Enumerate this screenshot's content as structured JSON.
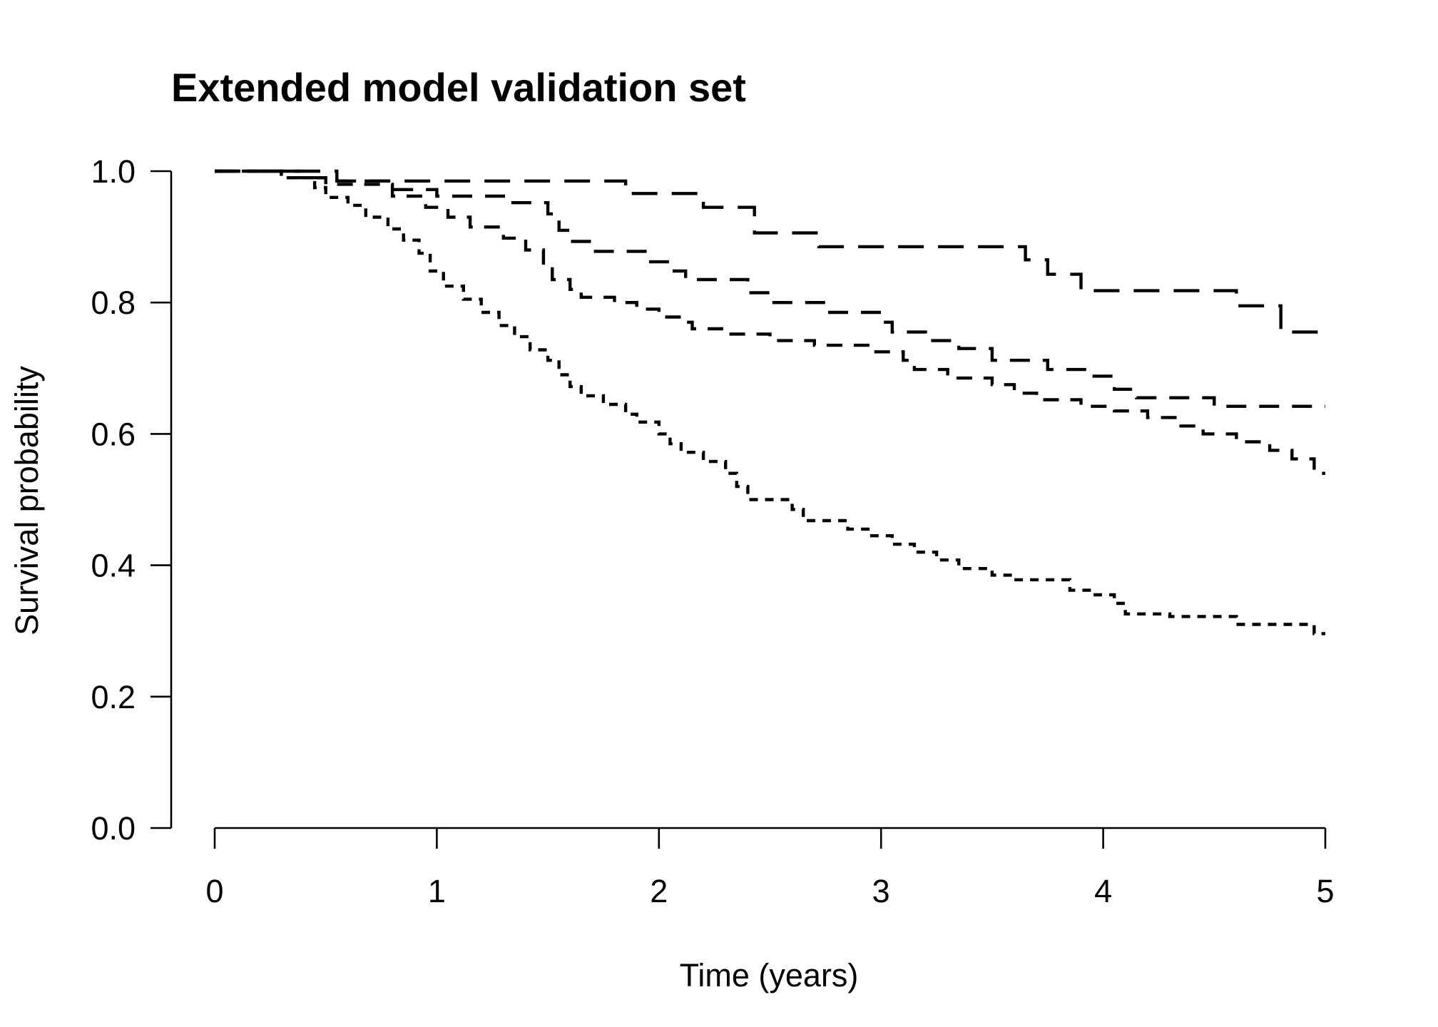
{
  "chart_data": {
    "type": "line",
    "title": "Extended model validation set",
    "xlabel": "Time (years)",
    "ylabel": "Survival probability",
    "xlim": [
      0,
      5
    ],
    "ylim": [
      0,
      1
    ],
    "x_ticks": [
      "0",
      "1",
      "2",
      "3",
      "4",
      "5"
    ],
    "y_ticks": [
      "0.0",
      "0.2",
      "0.4",
      "0.6",
      "0.8",
      "1.0"
    ],
    "grid": false,
    "legend": "none",
    "line_color": "#000000",
    "series": [
      {
        "line_style": "long-dash",
        "points": [
          [
            0,
            1.0
          ],
          [
            0.55,
            1.0
          ],
          [
            0.55,
            0.985
          ],
          [
            1.85,
            0.985
          ],
          [
            1.85,
            0.966
          ],
          [
            2.2,
            0.966
          ],
          [
            2.2,
            0.945
          ],
          [
            2.43,
            0.945
          ],
          [
            2.43,
            0.906
          ],
          [
            2.72,
            0.906
          ],
          [
            2.72,
            0.885
          ],
          [
            3.65,
            0.885
          ],
          [
            3.65,
            0.865
          ],
          [
            3.75,
            0.865
          ],
          [
            3.75,
            0.843
          ],
          [
            3.9,
            0.843
          ],
          [
            3.9,
            0.818
          ],
          [
            4.6,
            0.818
          ],
          [
            4.6,
            0.795
          ],
          [
            4.8,
            0.795
          ],
          [
            4.8,
            0.755
          ],
          [
            5.0,
            0.755
          ]
        ]
      },
      {
        "line_style": "medium-dash",
        "points": [
          [
            0,
            1.0
          ],
          [
            0.4,
            1.0
          ],
          [
            0.4,
            0.99
          ],
          [
            0.55,
            0.99
          ],
          [
            0.55,
            0.985
          ],
          [
            0.8,
            0.985
          ],
          [
            0.8,
            0.972
          ],
          [
            1.0,
            0.972
          ],
          [
            1.0,
            0.962
          ],
          [
            1.3,
            0.962
          ],
          [
            1.3,
            0.952
          ],
          [
            1.5,
            0.952
          ],
          [
            1.5,
            0.935
          ],
          [
            1.55,
            0.935
          ],
          [
            1.55,
            0.91
          ],
          [
            1.6,
            0.91
          ],
          [
            1.6,
            0.893
          ],
          [
            1.7,
            0.893
          ],
          [
            1.7,
            0.878
          ],
          [
            1.95,
            0.878
          ],
          [
            1.95,
            0.862
          ],
          [
            2.05,
            0.862
          ],
          [
            2.05,
            0.848
          ],
          [
            2.12,
            0.848
          ],
          [
            2.12,
            0.835
          ],
          [
            2.4,
            0.835
          ],
          [
            2.4,
            0.815
          ],
          [
            2.5,
            0.815
          ],
          [
            2.5,
            0.8
          ],
          [
            2.75,
            0.8
          ],
          [
            2.75,
            0.785
          ],
          [
            3.0,
            0.785
          ],
          [
            3.0,
            0.77
          ],
          [
            3.05,
            0.77
          ],
          [
            3.05,
            0.755
          ],
          [
            3.2,
            0.755
          ],
          [
            3.2,
            0.742
          ],
          [
            3.35,
            0.742
          ],
          [
            3.35,
            0.73
          ],
          [
            3.5,
            0.73
          ],
          [
            3.5,
            0.712
          ],
          [
            3.75,
            0.712
          ],
          [
            3.75,
            0.698
          ],
          [
            3.95,
            0.698
          ],
          [
            3.95,
            0.688
          ],
          [
            4.05,
            0.688
          ],
          [
            4.05,
            0.668
          ],
          [
            4.15,
            0.668
          ],
          [
            4.15,
            0.655
          ],
          [
            4.5,
            0.655
          ],
          [
            4.5,
            0.642
          ],
          [
            5.0,
            0.642
          ]
        ]
      },
      {
        "line_style": "short-dash",
        "points": [
          [
            0,
            1.0
          ],
          [
            0.3,
            1.0
          ],
          [
            0.3,
            0.99
          ],
          [
            0.5,
            0.99
          ],
          [
            0.5,
            0.98
          ],
          [
            0.8,
            0.98
          ],
          [
            0.8,
            0.962
          ],
          [
            0.95,
            0.962
          ],
          [
            0.95,
            0.945
          ],
          [
            1.05,
            0.945
          ],
          [
            1.05,
            0.93
          ],
          [
            1.15,
            0.93
          ],
          [
            1.15,
            0.915
          ],
          [
            1.3,
            0.915
          ],
          [
            1.3,
            0.898
          ],
          [
            1.4,
            0.898
          ],
          [
            1.4,
            0.88
          ],
          [
            1.48,
            0.88
          ],
          [
            1.48,
            0.86
          ],
          [
            1.52,
            0.86
          ],
          [
            1.52,
            0.835
          ],
          [
            1.6,
            0.835
          ],
          [
            1.6,
            0.82
          ],
          [
            1.65,
            0.82
          ],
          [
            1.65,
            0.808
          ],
          [
            1.8,
            0.808
          ],
          [
            1.8,
            0.8
          ],
          [
            1.9,
            0.8
          ],
          [
            1.9,
            0.79
          ],
          [
            2.0,
            0.79
          ],
          [
            2.0,
            0.778
          ],
          [
            2.1,
            0.778
          ],
          [
            2.1,
            0.77
          ],
          [
            2.15,
            0.77
          ],
          [
            2.15,
            0.76
          ],
          [
            2.3,
            0.76
          ],
          [
            2.3,
            0.752
          ],
          [
            2.5,
            0.752
          ],
          [
            2.5,
            0.742
          ],
          [
            2.7,
            0.742
          ],
          [
            2.7,
            0.735
          ],
          [
            2.95,
            0.735
          ],
          [
            2.95,
            0.725
          ],
          [
            3.1,
            0.725
          ],
          [
            3.1,
            0.712
          ],
          [
            3.15,
            0.712
          ],
          [
            3.15,
            0.698
          ],
          [
            3.3,
            0.698
          ],
          [
            3.3,
            0.685
          ],
          [
            3.5,
            0.685
          ],
          [
            3.5,
            0.675
          ],
          [
            3.6,
            0.675
          ],
          [
            3.6,
            0.662
          ],
          [
            3.7,
            0.662
          ],
          [
            3.7,
            0.652
          ],
          [
            3.9,
            0.652
          ],
          [
            3.9,
            0.642
          ],
          [
            4.05,
            0.642
          ],
          [
            4.05,
            0.635
          ],
          [
            4.2,
            0.635
          ],
          [
            4.2,
            0.625
          ],
          [
            4.35,
            0.625
          ],
          [
            4.35,
            0.612
          ],
          [
            4.45,
            0.612
          ],
          [
            4.45,
            0.6
          ],
          [
            4.6,
            0.6
          ],
          [
            4.6,
            0.588
          ],
          [
            4.75,
            0.588
          ],
          [
            4.75,
            0.575
          ],
          [
            4.85,
            0.575
          ],
          [
            4.85,
            0.562
          ],
          [
            4.95,
            0.562
          ],
          [
            4.95,
            0.54
          ],
          [
            5.0,
            0.54
          ]
        ]
      },
      {
        "line_style": "fine-dash",
        "points": [
          [
            0,
            1.0
          ],
          [
            0.3,
            1.0
          ],
          [
            0.3,
            0.99
          ],
          [
            0.45,
            0.99
          ],
          [
            0.45,
            0.975
          ],
          [
            0.5,
            0.975
          ],
          [
            0.5,
            0.96
          ],
          [
            0.6,
            0.96
          ],
          [
            0.6,
            0.948
          ],
          [
            0.68,
            0.948
          ],
          [
            0.68,
            0.93
          ],
          [
            0.78,
            0.93
          ],
          [
            0.78,
            0.912
          ],
          [
            0.85,
            0.912
          ],
          [
            0.85,
            0.895
          ],
          [
            0.92,
            0.895
          ],
          [
            0.92,
            0.875
          ],
          [
            0.97,
            0.875
          ],
          [
            0.97,
            0.848
          ],
          [
            1.03,
            0.848
          ],
          [
            1.03,
            0.825
          ],
          [
            1.12,
            0.825
          ],
          [
            1.12,
            0.805
          ],
          [
            1.2,
            0.805
          ],
          [
            1.2,
            0.785
          ],
          [
            1.28,
            0.785
          ],
          [
            1.28,
            0.765
          ],
          [
            1.35,
            0.765
          ],
          [
            1.35,
            0.748
          ],
          [
            1.42,
            0.748
          ],
          [
            1.42,
            0.728
          ],
          [
            1.5,
            0.728
          ],
          [
            1.5,
            0.712
          ],
          [
            1.55,
            0.712
          ],
          [
            1.55,
            0.69
          ],
          [
            1.6,
            0.69
          ],
          [
            1.6,
            0.672
          ],
          [
            1.65,
            0.672
          ],
          [
            1.65,
            0.658
          ],
          [
            1.75,
            0.658
          ],
          [
            1.75,
            0.645
          ],
          [
            1.85,
            0.645
          ],
          [
            1.85,
            0.63
          ],
          [
            1.9,
            0.63
          ],
          [
            1.9,
            0.618
          ],
          [
            2.0,
            0.618
          ],
          [
            2.0,
            0.6
          ],
          [
            2.05,
            0.6
          ],
          [
            2.05,
            0.585
          ],
          [
            2.1,
            0.585
          ],
          [
            2.1,
            0.572
          ],
          [
            2.2,
            0.572
          ],
          [
            2.2,
            0.558
          ],
          [
            2.3,
            0.558
          ],
          [
            2.3,
            0.54
          ],
          [
            2.35,
            0.54
          ],
          [
            2.35,
            0.52
          ],
          [
            2.4,
            0.52
          ],
          [
            2.4,
            0.5
          ],
          [
            2.6,
            0.5
          ],
          [
            2.6,
            0.485
          ],
          [
            2.65,
            0.485
          ],
          [
            2.65,
            0.468
          ],
          [
            2.85,
            0.468
          ],
          [
            2.85,
            0.455
          ],
          [
            2.95,
            0.455
          ],
          [
            2.95,
            0.445
          ],
          [
            3.05,
            0.445
          ],
          [
            3.05,
            0.432
          ],
          [
            3.15,
            0.432
          ],
          [
            3.15,
            0.42
          ],
          [
            3.25,
            0.42
          ],
          [
            3.25,
            0.408
          ],
          [
            3.35,
            0.408
          ],
          [
            3.35,
            0.395
          ],
          [
            3.5,
            0.395
          ],
          [
            3.5,
            0.385
          ],
          [
            3.6,
            0.385
          ],
          [
            3.6,
            0.378
          ],
          [
            3.85,
            0.378
          ],
          [
            3.85,
            0.362
          ],
          [
            3.95,
            0.362
          ],
          [
            3.95,
            0.355
          ],
          [
            4.05,
            0.355
          ],
          [
            4.05,
            0.342
          ],
          [
            4.1,
            0.342
          ],
          [
            4.1,
            0.326
          ],
          [
            4.3,
            0.326
          ],
          [
            4.3,
            0.322
          ],
          [
            4.6,
            0.322
          ],
          [
            4.6,
            0.31
          ],
          [
            4.95,
            0.31
          ],
          [
            4.95,
            0.296
          ],
          [
            5.0,
            0.296
          ]
        ]
      }
    ]
  }
}
